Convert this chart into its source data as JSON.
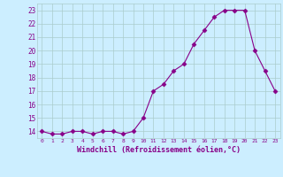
{
  "x": [
    0,
    1,
    2,
    3,
    4,
    5,
    6,
    7,
    8,
    9,
    10,
    11,
    12,
    13,
    14,
    15,
    16,
    17,
    18,
    19,
    20,
    21,
    22,
    23
  ],
  "y": [
    14.0,
    13.8,
    13.8,
    14.0,
    14.0,
    13.8,
    14.0,
    14.0,
    13.8,
    14.0,
    15.0,
    17.0,
    17.5,
    18.5,
    19.0,
    20.5,
    21.5,
    22.5,
    23.0,
    23.0,
    23.0,
    20.0,
    18.5,
    17.0
  ],
  "line_color": "#880088",
  "marker": "D",
  "marker_size": 2.5,
  "bg_color": "#cceeff",
  "grid_color": "#aacccc",
  "xlabel": "Windchill (Refroidissement éolien,°C)",
  "xlabel_color": "#880088",
  "tick_color": "#880088",
  "ylim": [
    13.5,
    23.5
  ],
  "xlim": [
    -0.5,
    23.5
  ],
  "yticks": [
    14,
    15,
    16,
    17,
    18,
    19,
    20,
    21,
    22,
    23
  ],
  "xticks": [
    0,
    1,
    2,
    3,
    4,
    5,
    6,
    7,
    8,
    9,
    10,
    11,
    12,
    13,
    14,
    15,
    16,
    17,
    18,
    19,
    20,
    21,
    22,
    23
  ],
  "xtick_labels": [
    "0",
    "1",
    "2",
    "3",
    "4",
    "5",
    "6",
    "7",
    "8",
    "9",
    "10",
    "11",
    "12",
    "13",
    "14",
    "15",
    "16",
    "17",
    "18",
    "19",
    "20",
    "21",
    "22",
    "23"
  ],
  "ytick_labels": [
    "14",
    "15",
    "16",
    "17",
    "18",
    "19",
    "20",
    "21",
    "22",
    "23"
  ]
}
